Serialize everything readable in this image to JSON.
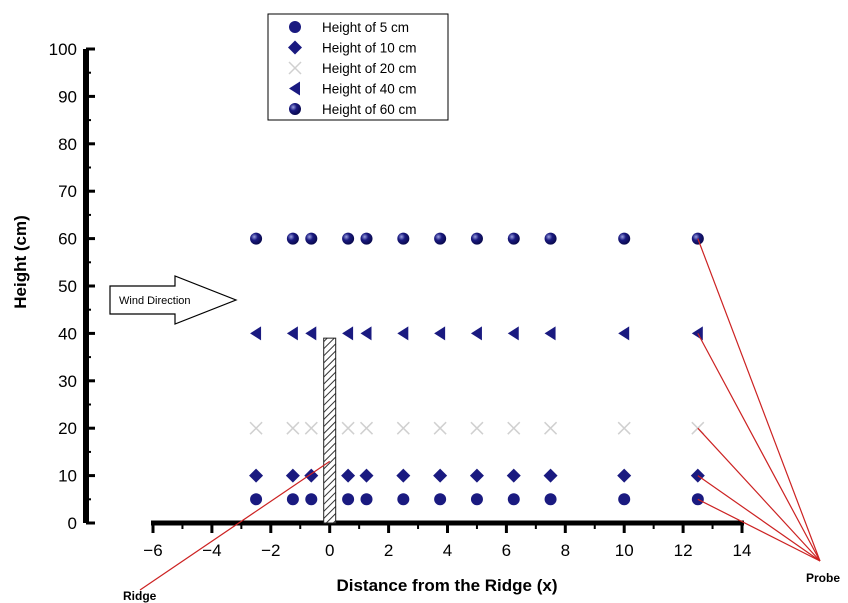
{
  "chart_data": {
    "type": "scatter",
    "xlabel": "Distance from the Ridge (x)",
    "ylabel": "Height (cm)",
    "xlim": [
      -6,
      14
    ],
    "ylim": [
      0,
      100
    ],
    "xticks": [
      -6,
      -4,
      -2,
      0,
      2,
      4,
      6,
      8,
      10,
      12,
      14
    ],
    "yticks": [
      0,
      10,
      20,
      30,
      40,
      50,
      60,
      70,
      80,
      90,
      100
    ],
    "grid": false,
    "legend_position": "top-center",
    "series": [
      {
        "name": "Height of  5 cm",
        "marker": "circle",
        "color": "#1a1a80",
        "x": [
          -2.5,
          -1.25,
          -0.625,
          0.625,
          1.25,
          2.5,
          3.75,
          5,
          6.25,
          7.5,
          10,
          12.5
        ],
        "y": [
          5,
          5,
          5,
          5,
          5,
          5,
          5,
          5,
          5,
          5,
          5,
          5
        ]
      },
      {
        "name": "Height of 10 cm",
        "marker": "diamond",
        "color": "#1a1a80",
        "x": [
          -2.5,
          -1.25,
          -0.625,
          0.625,
          1.25,
          2.5,
          3.75,
          5,
          6.25,
          7.5,
          10,
          12.5
        ],
        "y": [
          10,
          10,
          10,
          10,
          10,
          10,
          10,
          10,
          10,
          10,
          10,
          10
        ]
      },
      {
        "name": "Height of 20 cm",
        "marker": "cross",
        "color": "#d0d0d0",
        "x": [
          -2.5,
          -1.25,
          -0.625,
          0.625,
          1.25,
          2.5,
          3.75,
          5,
          6.25,
          7.5,
          10,
          12.5
        ],
        "y": [
          20,
          20,
          20,
          20,
          20,
          20,
          20,
          20,
          20,
          20,
          20,
          20
        ]
      },
      {
        "name": "Height of 40 cm",
        "marker": "triangle-left",
        "color": "#1a1a80",
        "x": [
          -2.5,
          -1.25,
          -0.625,
          0.625,
          1.25,
          2.5,
          3.75,
          5,
          6.25,
          7.5,
          10,
          12.5
        ],
        "y": [
          40,
          40,
          40,
          40,
          40,
          40,
          40,
          40,
          40,
          40,
          40,
          40
        ]
      },
      {
        "name": "Height of 60 cm",
        "marker": "sphere",
        "color": "#1a1a80",
        "x": [
          -2.5,
          -1.25,
          -0.625,
          0.625,
          1.25,
          2.5,
          3.75,
          5,
          6.25,
          7.5,
          10,
          12.5
        ],
        "y": [
          60,
          60,
          60,
          60,
          60,
          60,
          60,
          60,
          60,
          60,
          60,
          60
        ]
      }
    ],
    "annotations": {
      "wind_direction": "Wind Direction",
      "ridge": "Ridge",
      "probe": "Probe"
    },
    "ridge": {
      "x": 0,
      "height": 39
    },
    "probe_points_x": 12.5,
    "probe_points_y": [
      60,
      40,
      20,
      10,
      5
    ],
    "ridge_pointer_target": {
      "x": 0,
      "y": 13
    },
    "annotation_line_color": "#cc2222"
  }
}
